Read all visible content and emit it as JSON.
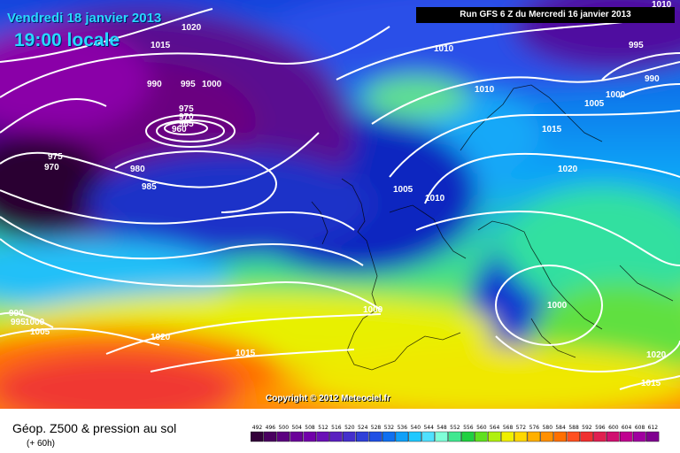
{
  "header": {
    "date": "Vendredi 18 janvier 2013",
    "local_time": "19:00 locale",
    "run": "Run GFS 6 Z du Mercredi 16 janvier 2013"
  },
  "footer": {
    "title": "Géop. Z500 & pression au sol",
    "subtitle": "(+ 60h)",
    "copyright": "Copyright © 2012 Meteociel.fr"
  },
  "isobar_labels": [
    "1020",
    "1015",
    "990",
    "995",
    "1000",
    "975",
    "970",
    "965",
    "960",
    "975",
    "970",
    "980",
    "985",
    "1010",
    "1010",
    "995",
    "990",
    "1000",
    "1005",
    "1015",
    "1020",
    "1005",
    "1010",
    "990",
    "995",
    "1000",
    "1005",
    "1000",
    "1020",
    "1015",
    "1000",
    "1020",
    "1015",
    "1010"
  ],
  "legend": {
    "values": [
      "492",
      "496",
      "500",
      "504",
      "508",
      "512",
      "516",
      "520",
      "524",
      "528",
      "532",
      "536",
      "540",
      "544",
      "548",
      "552",
      "556",
      "560",
      "564",
      "568",
      "572",
      "576",
      "580",
      "584",
      "588",
      "592",
      "596",
      "600",
      "604",
      "608",
      "612"
    ],
    "colors": [
      "#33003a",
      "#4a0060",
      "#5c0080",
      "#6a0099",
      "#7200aa",
      "#6a10b6",
      "#5a20c0",
      "#4530cc",
      "#3040d8",
      "#2050e4",
      "#1070f0",
      "#10a0f8",
      "#20c8ff",
      "#50e0ff",
      "#80ffd8",
      "#40e890",
      "#20d040",
      "#60e020",
      "#b0f010",
      "#f0f000",
      "#ffd800",
      "#ffb000",
      "#ff9000",
      "#ff7000",
      "#ff5020",
      "#f03030",
      "#e02050",
      "#d01070",
      "#c00090",
      "#a000a0",
      "#800090"
    ]
  }
}
